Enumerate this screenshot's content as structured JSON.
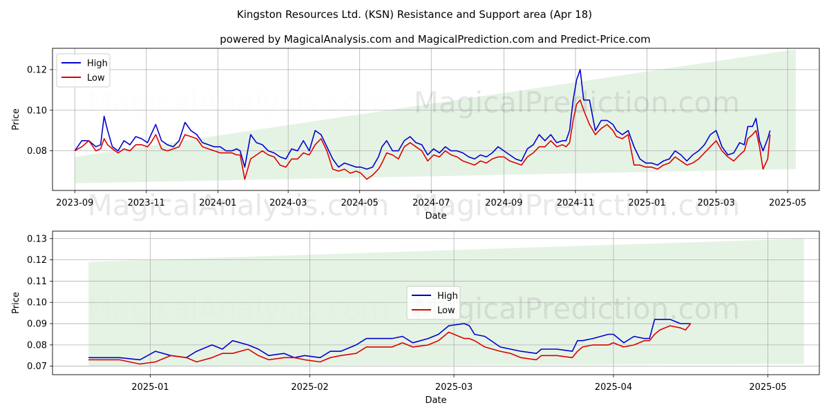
{
  "title": "Kingston Resources Ltd. (KSN) Resistance and Support area (Apr 18)",
  "subtitle": "powered by MagicalAnalysis.com and MagicalPrediction.com and Predict-Price.com",
  "watermarks": [
    "MagicalAnalysis.com",
    "MagicalPrediction.com"
  ],
  "colors": {
    "high": "#0000cc",
    "low": "#dd0000",
    "band": "#2ca02c",
    "grid": "#b0b0b0"
  },
  "chart_data": [
    {
      "type": "line",
      "xlabel": "Date",
      "ylabel": "Price",
      "grid": true,
      "legend": "top-left",
      "xlim": [
        "2023-08-13",
        "2025-05-28"
      ],
      "ylim": [
        0.0605,
        0.1305
      ],
      "xticks": [
        "2023-09",
        "2023-11",
        "2024-01",
        "2024-03",
        "2024-05",
        "2024-07",
        "2024-09",
        "2024-11",
        "2025-01",
        "2025-03",
        "2025-05"
      ],
      "yticks": [
        "0.08",
        "0.10",
        "0.12"
      ],
      "band": {
        "x": [
          "2023-09-01",
          "2025-05-08"
        ],
        "upper": [
          0.077,
          0.13
        ],
        "lower": [
          0.064,
          0.071
        ]
      },
      "series": [
        {
          "name": "High",
          "x": [
            "2023-09-01",
            "2023-09-07",
            "2023-09-13",
            "2023-09-19",
            "2023-09-23",
            "2023-09-26",
            "2023-09-29",
            "2023-10-03",
            "2023-10-08",
            "2023-10-13",
            "2023-10-18",
            "2023-10-23",
            "2023-10-28",
            "2023-11-02",
            "2023-11-05",
            "2023-11-09",
            "2023-11-14",
            "2023-11-19",
            "2023-11-24",
            "2023-11-29",
            "2023-12-04",
            "2023-12-09",
            "2023-12-14",
            "2023-12-19",
            "2023-12-24",
            "2023-12-29",
            "2024-01-03",
            "2024-01-08",
            "2024-01-13",
            "2024-01-17",
            "2024-01-20",
            "2024-01-24",
            "2024-01-29",
            "2024-02-03",
            "2024-02-08",
            "2024-02-13",
            "2024-02-18",
            "2024-02-23",
            "2024-02-28",
            "2024-03-04",
            "2024-03-09",
            "2024-03-14",
            "2024-03-19",
            "2024-03-24",
            "2024-03-29",
            "2024-04-03",
            "2024-04-08",
            "2024-04-13",
            "2024-04-18",
            "2024-04-23",
            "2024-04-28",
            "2024-05-02",
            "2024-05-07",
            "2024-05-12",
            "2024-05-17",
            "2024-05-20",
            "2024-05-24",
            "2024-05-29",
            "2024-06-03",
            "2024-06-08",
            "2024-06-13",
            "2024-06-18",
            "2024-06-23",
            "2024-06-28",
            "2024-07-03",
            "2024-07-08",
            "2024-07-13",
            "2024-07-18",
            "2024-07-23",
            "2024-07-28",
            "2024-08-02",
            "2024-08-07",
            "2024-08-12",
            "2024-08-17",
            "2024-08-22",
            "2024-08-27",
            "2024-09-01",
            "2024-09-06",
            "2024-09-11",
            "2024-09-16",
            "2024-09-21",
            "2024-09-26",
            "2024-10-01",
            "2024-10-06",
            "2024-10-11",
            "2024-10-16",
            "2024-10-21",
            "2024-10-24",
            "2024-10-27",
            "2024-10-30",
            "2024-11-02",
            "2024-11-05",
            "2024-11-08",
            "2024-11-13",
            "2024-11-18",
            "2024-11-23",
            "2024-11-28",
            "2024-12-03",
            "2024-12-06",
            "2024-12-11",
            "2024-12-16",
            "2024-12-21",
            "2024-12-26",
            "2024-12-31",
            "2025-01-05",
            "2025-01-10",
            "2025-01-15",
            "2025-01-20",
            "2025-01-25",
            "2025-01-30",
            "2025-02-04",
            "2025-02-09",
            "2025-02-14",
            "2025-02-19",
            "2025-02-24",
            "2025-03-01",
            "2025-03-06",
            "2025-03-11",
            "2025-03-16",
            "2025-03-21",
            "2025-03-25",
            "2025-03-28",
            "2025-04-01",
            "2025-04-04",
            "2025-04-07",
            "2025-04-10",
            "2025-04-14",
            "2025-04-16"
          ],
          "values": [
            0.08,
            0.085,
            0.085,
            0.082,
            0.083,
            0.097,
            0.09,
            0.082,
            0.08,
            0.085,
            0.083,
            0.087,
            0.086,
            0.084,
            0.088,
            0.093,
            0.085,
            0.083,
            0.082,
            0.085,
            0.094,
            0.09,
            0.088,
            0.084,
            0.083,
            0.082,
            0.082,
            0.08,
            0.08,
            0.081,
            0.08,
            0.072,
            0.088,
            0.084,
            0.083,
            0.08,
            0.079,
            0.077,
            0.076,
            0.081,
            0.08,
            0.085,
            0.08,
            0.09,
            0.088,
            0.082,
            0.076,
            0.072,
            0.074,
            0.073,
            0.072,
            0.072,
            0.071,
            0.072,
            0.077,
            0.082,
            0.085,
            0.08,
            0.08,
            0.085,
            0.087,
            0.084,
            0.083,
            0.078,
            0.081,
            0.079,
            0.082,
            0.08,
            0.08,
            0.079,
            0.077,
            0.076,
            0.078,
            0.077,
            0.079,
            0.082,
            0.08,
            0.078,
            0.076,
            0.075,
            0.081,
            0.083,
            0.088,
            0.085,
            0.088,
            0.084,
            0.085,
            0.085,
            0.09,
            0.105,
            0.115,
            0.12,
            0.105,
            0.105,
            0.09,
            0.095,
            0.095,
            0.093,
            0.09,
            0.088,
            0.09,
            0.082,
            0.076,
            0.074,
            0.074,
            0.073,
            0.075,
            0.076,
            0.08,
            0.078,
            0.075,
            0.078,
            0.08,
            0.083,
            0.088,
            0.09,
            0.082,
            0.078,
            0.079,
            0.084,
            0.083,
            0.092,
            0.092,
            0.096,
            0.085,
            0.08,
            0.086,
            0.09
          ]
        },
        {
          "name": "Low",
          "x": [
            "2023-09-01",
            "2023-09-07",
            "2023-09-13",
            "2023-09-19",
            "2023-09-23",
            "2023-09-26",
            "2023-09-29",
            "2023-10-03",
            "2023-10-08",
            "2023-10-13",
            "2023-10-18",
            "2023-10-23",
            "2023-10-28",
            "2023-11-02",
            "2023-11-05",
            "2023-11-09",
            "2023-11-14",
            "2023-11-19",
            "2023-11-24",
            "2023-11-29",
            "2023-12-04",
            "2023-12-09",
            "2023-12-14",
            "2023-12-19",
            "2023-12-24",
            "2023-12-29",
            "2024-01-03",
            "2024-01-08",
            "2024-01-13",
            "2024-01-17",
            "2024-01-20",
            "2024-01-24",
            "2024-01-29",
            "2024-02-03",
            "2024-02-08",
            "2024-02-13",
            "2024-02-18",
            "2024-02-23",
            "2024-02-28",
            "2024-03-04",
            "2024-03-09",
            "2024-03-14",
            "2024-03-19",
            "2024-03-24",
            "2024-03-29",
            "2024-04-03",
            "2024-04-08",
            "2024-04-13",
            "2024-04-18",
            "2024-04-23",
            "2024-04-28",
            "2024-05-02",
            "2024-05-07",
            "2024-05-12",
            "2024-05-17",
            "2024-05-20",
            "2024-05-24",
            "2024-05-29",
            "2024-06-03",
            "2024-06-08",
            "2024-06-13",
            "2024-06-18",
            "2024-06-23",
            "2024-06-28",
            "2024-07-03",
            "2024-07-08",
            "2024-07-13",
            "2024-07-18",
            "2024-07-23",
            "2024-07-28",
            "2024-08-02",
            "2024-08-07",
            "2024-08-12",
            "2024-08-17",
            "2024-08-22",
            "2024-08-27",
            "2024-09-01",
            "2024-09-06",
            "2024-09-11",
            "2024-09-16",
            "2024-09-21",
            "2024-09-26",
            "2024-10-01",
            "2024-10-06",
            "2024-10-11",
            "2024-10-16",
            "2024-10-21",
            "2024-10-24",
            "2024-10-27",
            "2024-10-30",
            "2024-11-02",
            "2024-11-05",
            "2024-11-08",
            "2024-11-13",
            "2024-11-18",
            "2024-11-23",
            "2024-11-28",
            "2024-12-03",
            "2024-12-06",
            "2024-12-11",
            "2024-12-16",
            "2024-12-21",
            "2024-12-26",
            "2024-12-31",
            "2025-01-05",
            "2025-01-10",
            "2025-01-15",
            "2025-01-20",
            "2025-01-25",
            "2025-01-30",
            "2025-02-04",
            "2025-02-09",
            "2025-02-14",
            "2025-02-19",
            "2025-02-24",
            "2025-03-01",
            "2025-03-06",
            "2025-03-11",
            "2025-03-16",
            "2025-03-21",
            "2025-03-25",
            "2025-03-28",
            "2025-04-01",
            "2025-04-04",
            "2025-04-07",
            "2025-04-10",
            "2025-04-14",
            "2025-04-16"
          ],
          "values": [
            0.08,
            0.082,
            0.085,
            0.08,
            0.081,
            0.086,
            0.083,
            0.081,
            0.079,
            0.081,
            0.08,
            0.083,
            0.083,
            0.082,
            0.084,
            0.088,
            0.081,
            0.08,
            0.081,
            0.082,
            0.088,
            0.087,
            0.086,
            0.082,
            0.081,
            0.08,
            0.079,
            0.079,
            0.079,
            0.078,
            0.078,
            0.066,
            0.076,
            0.078,
            0.08,
            0.078,
            0.077,
            0.073,
            0.072,
            0.076,
            0.076,
            0.079,
            0.078,
            0.083,
            0.086,
            0.08,
            0.071,
            0.07,
            0.071,
            0.069,
            0.07,
            0.069,
            0.066,
            0.068,
            0.071,
            0.074,
            0.079,
            0.078,
            0.076,
            0.082,
            0.084,
            0.082,
            0.08,
            0.075,
            0.078,
            0.077,
            0.08,
            0.078,
            0.077,
            0.075,
            0.074,
            0.073,
            0.075,
            0.074,
            0.076,
            0.077,
            0.077,
            0.075,
            0.074,
            0.073,
            0.077,
            0.079,
            0.082,
            0.082,
            0.085,
            0.082,
            0.083,
            0.082,
            0.084,
            0.095,
            0.103,
            0.105,
            0.1,
            0.093,
            0.088,
            0.091,
            0.093,
            0.09,
            0.087,
            0.086,
            0.088,
            0.073,
            0.073,
            0.072,
            0.072,
            0.071,
            0.073,
            0.074,
            0.077,
            0.075,
            0.073,
            0.074,
            0.076,
            0.079,
            0.082,
            0.085,
            0.08,
            0.077,
            0.075,
            0.078,
            0.08,
            0.086,
            0.088,
            0.09,
            0.082,
            0.071,
            0.076,
            0.088
          ]
        }
      ]
    },
    {
      "type": "line",
      "xlabel": "Date",
      "ylabel": "Price",
      "grid": true,
      "legend": "center",
      "xlim": [
        "2024-12-13",
        "2025-05-11"
      ],
      "ylim": [
        0.066,
        0.1335
      ],
      "xticks": [
        "2025-01",
        "2025-02",
        "2025-03",
        "2025-04",
        "2025-05"
      ],
      "yticks": [
        "0.07",
        "0.08",
        "0.09",
        "0.10",
        "0.11",
        "0.12",
        "0.13"
      ],
      "band": {
        "x": [
          "2024-12-20",
          "2025-05-08"
        ],
        "upper": [
          0.119,
          0.13
        ],
        "lower": [
          0.07,
          0.071
        ]
      },
      "series": [
        {
          "name": "High",
          "x": [
            "2024-12-20",
            "2024-12-23",
            "2024-12-26",
            "2024-12-30",
            "2025-01-02",
            "2025-01-05",
            "2025-01-08",
            "2025-01-10",
            "2025-01-13",
            "2025-01-15",
            "2025-01-17",
            "2025-01-20",
            "2025-01-22",
            "2025-01-24",
            "2025-01-27",
            "2025-01-29",
            "2025-01-31",
            "2025-02-03",
            "2025-02-05",
            "2025-02-07",
            "2025-02-10",
            "2025-02-12",
            "2025-02-14",
            "2025-02-17",
            "2025-02-19",
            "2025-02-21",
            "2025-02-24",
            "2025-02-26",
            "2025-02-28",
            "2025-03-03",
            "2025-03-04",
            "2025-03-05",
            "2025-03-07",
            "2025-03-10",
            "2025-03-12",
            "2025-03-14",
            "2025-03-17",
            "2025-03-18",
            "2025-03-20",
            "2025-03-21",
            "2025-03-24",
            "2025-03-25",
            "2025-03-26",
            "2025-03-28",
            "2025-03-31",
            "2025-04-01",
            "2025-04-03",
            "2025-04-05",
            "2025-04-07",
            "2025-04-08",
            "2025-04-09",
            "2025-04-10",
            "2025-04-12",
            "2025-04-14",
            "2025-04-15",
            "2025-04-16"
          ],
          "values": [
            0.074,
            0.074,
            0.074,
            0.073,
            0.077,
            0.075,
            0.074,
            0.077,
            0.08,
            0.078,
            0.082,
            0.08,
            0.078,
            0.075,
            0.076,
            0.074,
            0.075,
            0.074,
            0.077,
            0.077,
            0.08,
            0.083,
            0.083,
            0.083,
            0.084,
            0.081,
            0.083,
            0.085,
            0.089,
            0.09,
            0.089,
            0.085,
            0.084,
            0.079,
            0.078,
            0.077,
            0.076,
            0.078,
            0.078,
            0.078,
            0.077,
            0.082,
            0.082,
            0.083,
            0.085,
            0.085,
            0.081,
            0.084,
            0.083,
            0.083,
            0.092,
            0.092,
            0.092,
            0.09,
            0.09,
            0.09
          ]
        },
        {
          "name": "Low",
          "x": [
            "2024-12-20",
            "2024-12-23",
            "2024-12-26",
            "2024-12-30",
            "2025-01-02",
            "2025-01-05",
            "2025-01-08",
            "2025-01-10",
            "2025-01-13",
            "2025-01-15",
            "2025-01-17",
            "2025-01-20",
            "2025-01-22",
            "2025-01-24",
            "2025-01-27",
            "2025-01-29",
            "2025-01-31",
            "2025-02-03",
            "2025-02-05",
            "2025-02-07",
            "2025-02-10",
            "2025-02-12",
            "2025-02-14",
            "2025-02-17",
            "2025-02-19",
            "2025-02-21",
            "2025-02-24",
            "2025-02-26",
            "2025-02-28",
            "2025-03-03",
            "2025-03-04",
            "2025-03-05",
            "2025-03-07",
            "2025-03-10",
            "2025-03-12",
            "2025-03-14",
            "2025-03-17",
            "2025-03-18",
            "2025-03-20",
            "2025-03-21",
            "2025-03-24",
            "2025-03-25",
            "2025-03-26",
            "2025-03-28",
            "2025-03-31",
            "2025-04-01",
            "2025-04-03",
            "2025-04-05",
            "2025-04-07",
            "2025-04-08",
            "2025-04-09",
            "2025-04-10",
            "2025-04-12",
            "2025-04-14",
            "2025-04-15",
            "2025-04-16"
          ],
          "values": [
            0.073,
            0.073,
            0.073,
            0.071,
            0.072,
            0.075,
            0.074,
            0.072,
            0.074,
            0.076,
            0.076,
            0.078,
            0.075,
            0.073,
            0.074,
            0.074,
            0.073,
            0.072,
            0.074,
            0.075,
            0.076,
            0.079,
            0.079,
            0.079,
            0.081,
            0.079,
            0.08,
            0.082,
            0.086,
            0.083,
            0.083,
            0.082,
            0.079,
            0.077,
            0.076,
            0.074,
            0.073,
            0.075,
            0.075,
            0.075,
            0.074,
            0.077,
            0.079,
            0.08,
            0.08,
            0.081,
            0.079,
            0.08,
            0.082,
            0.082,
            0.085,
            0.087,
            0.089,
            0.088,
            0.087,
            0.09
          ]
        }
      ]
    }
  ]
}
